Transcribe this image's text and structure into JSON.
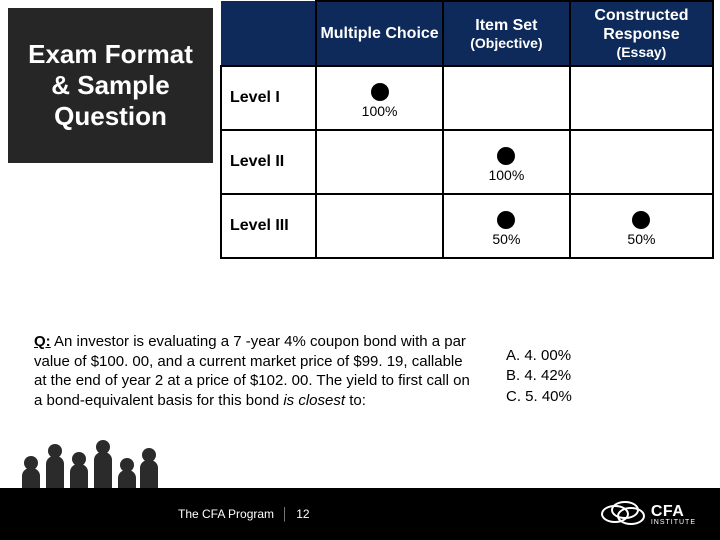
{
  "title": "Exam Format & Sample Question",
  "table": {
    "header_bg": "#0d2a5a",
    "columns": [
      {
        "title": "Multiple Choice",
        "sub": ""
      },
      {
        "title": "Item Set",
        "sub": "(Objective)"
      },
      {
        "title": "Constructed Response",
        "sub": "(Essay)"
      }
    ],
    "rows": [
      {
        "label": "Level I",
        "cells": [
          {
            "dot": true,
            "pct": "100%"
          },
          {
            "dot": false,
            "pct": ""
          },
          {
            "dot": false,
            "pct": ""
          }
        ]
      },
      {
        "label": "Level II",
        "cells": [
          {
            "dot": false,
            "pct": ""
          },
          {
            "dot": true,
            "pct": "100%"
          },
          {
            "dot": false,
            "pct": ""
          }
        ]
      },
      {
        "label": "Level III",
        "cells": [
          {
            "dot": false,
            "pct": ""
          },
          {
            "dot": true,
            "pct": "50%"
          },
          {
            "dot": true,
            "pct": "50%"
          }
        ]
      }
    ]
  },
  "question": {
    "q_label": "Q:",
    "text_part1": "An investor is evaluating a 7 -year 4% coupon bond with a par value of $100. 00, and a current market price of $99. 19, callable at the end of year 2 at a price of $102. 00. The yield to first call on a bond-equivalent basis for this bond ",
    "italic_part": "is closest",
    "text_part2": " to:"
  },
  "answers": [
    {
      "letter": "A.",
      "value": "4. 00%"
    },
    {
      "letter": "B.",
      "value": "4. 42%"
    },
    {
      "letter": "C.",
      "value": "5. 40%"
    }
  ],
  "footer": {
    "program": "The CFA Program",
    "page": "12",
    "logo_text": "CFA",
    "logo_sub": "INSTITUTE"
  },
  "colors": {
    "title_bg": "#262626",
    "footer_bg": "#000000",
    "dot": "#000000",
    "border": "#000000"
  }
}
